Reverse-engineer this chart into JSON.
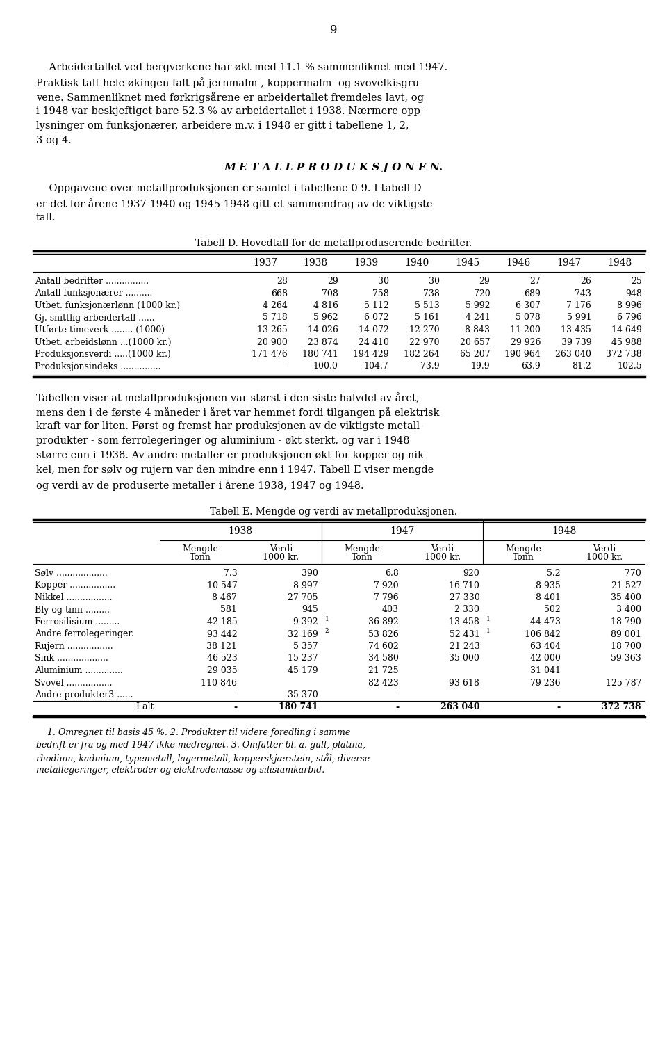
{
  "page_number": "9",
  "intro_paragraphs": [
    [
      "    Arbeidertallet ved bergverkene har økt med 11.1 % sammenliknet med 1947.",
      false
    ],
    [
      "Praktisk talt hele økingen falt på jernmalm-, koppermalm- og svovelkisgru-",
      false
    ],
    [
      "vene. Sammenliknet med førkrigsårene er arbeidertallet fremdeles lavt, og",
      false
    ],
    [
      "i 1948 var beskjeftiget bare 52.3 % av arbeidertallet i 1938. Nærmere opp-",
      false
    ],
    [
      "lysninger om funksjonærer, arbeidere m.v. i 1948 er gitt i tabellene 1, 2,",
      false
    ],
    [
      "3 og 4.",
      false
    ]
  ],
  "section_title": "M E T A L L P R O D U K S J O N E N.",
  "section_paragraphs": [
    [
      "    Oppgavene over metallproduksjonen er samlet i tabellene 0-9. I tabell D",
      false
    ],
    [
      "er det for årene 1937-1940 og 1945-1948 gitt et sammendrag av de viktigste",
      false
    ],
    [
      "tall.",
      false
    ]
  ],
  "table_d_title": "Tabell D. Hovedtall for de metallproduserende bedrifter.",
  "table_d_years": [
    "1937",
    "1938",
    "1939",
    "1940",
    "1945",
    "1946",
    "1947",
    "1948"
  ],
  "table_d_rows": [
    {
      "label": "Antall bedrifter ................",
      "values": [
        "28",
        "29",
        "30",
        "30",
        "29",
        "27",
        "26",
        "25"
      ]
    },
    {
      "label": "Antall funksjonærer ..........",
      "values": [
        "668",
        "708",
        "758",
        "738",
        "720",
        "689",
        "743",
        "948"
      ]
    },
    {
      "label": "Utbet. funksjonærlønn (1000 kr.)",
      "values": [
        "4 264",
        "4 816",
        "5 112",
        "5 513",
        "5 992",
        "6 307",
        "7 176",
        "8 996"
      ]
    },
    {
      "label": "Gj. snittlig arbeidertall ......",
      "values": [
        "5 718",
        "5 962",
        "6 072",
        "5 161",
        "4 241",
        "5 078",
        "5 991",
        "6 796"
      ]
    },
    {
      "label": "Utførte timeverk ........ (1000)",
      "values": [
        "13 265",
        "14 026",
        "14 072",
        "12 270",
        "8 843",
        "11 200",
        "13 435",
        "14 649"
      ]
    },
    {
      "label": "Utbet. arbeidslønn ...(1000 kr.)",
      "values": [
        "20 900",
        "23 874",
        "24 410",
        "22 970",
        "20 657",
        "29 926",
        "39 739",
        "45 988"
      ]
    },
    {
      "label": "Produksjonsverdi .....(1000 kr.)",
      "values": [
        "171 476",
        "180 741",
        "194 429",
        "182 264",
        "65 207",
        "190 964",
        "263 040",
        "372 738"
      ]
    },
    {
      "label": "Produksjonsindeks ...............",
      "values": [
        "-",
        "100.0",
        "104.7",
        "73.9",
        "19.9",
        "63.9",
        "81.2",
        "102.5"
      ]
    }
  ],
  "middle_paragraphs": [
    [
      "Tabellen viser at metallproduksjonen var størst i den siste halvdel av året,",
      false
    ],
    [
      "mens den i de første 4 måneder i året var hemmet fordi tilgangen på elektrisk",
      false
    ],
    [
      "kraft var for liten. Først og fremst har produksjonen av de viktigste metall-",
      false
    ],
    [
      "produkter - som ferrolegeringer og aluminium - økt sterkt, og var i 1948",
      false
    ],
    [
      "større enn i 1938. Av andre metaller er produksjonen økt for kopper og nik-",
      false
    ],
    [
      "kel, men for sølv og rujern var den mindre enn i 1947. Tabell E viser mengde",
      false
    ],
    [
      "og verdi av de produserte metaller i årene 1938, 1947 og 1948.",
      false
    ]
  ],
  "table_e_title": "Tabell E. Mengde og verdi av metallproduksjonen.",
  "table_e_year_headers": [
    "1938",
    "1947",
    "1948"
  ],
  "table_e_rows": [
    {
      "label": "Sølv ...................",
      "values": [
        "7.3",
        "390",
        "6.8",
        "920",
        "5.2",
        "770"
      ],
      "sups": [
        "",
        "",
        "",
        "",
        "",
        ""
      ]
    },
    {
      "label": "Kopper .................",
      "values": [
        "10 547",
        "8 997",
        "7 920",
        "16 710",
        "8 935",
        "21 527"
      ],
      "sups": [
        "",
        "",
        "",
        "",
        "",
        ""
      ]
    },
    {
      "label": "Nikkel .................",
      "values": [
        "8 467",
        "27 705",
        "7 796",
        "27 330",
        "8 401",
        "35 400"
      ],
      "sups": [
        "",
        "",
        "",
        "",
        "",
        ""
      ]
    },
    {
      "label": "Bly og tinn .........",
      "values": [
        "581",
        "945",
        "403",
        "2 330",
        "502",
        "3 400"
      ],
      "sups": [
        "",
        "",
        "",
        "",
        "",
        ""
      ]
    },
    {
      "label": "Ferrosilisium .........",
      "values": [
        "42 185",
        "9 392",
        "36 892",
        "13 458",
        "44 473",
        "18 790"
      ],
      "sups": [
        "",
        "",
        "1",
        "",
        "1",
        ""
      ]
    },
    {
      "label": "Andre ferrolegeringer.",
      "values": [
        "93 442",
        "32 169",
        "53 826",
        "52 431",
        "106 842",
        "89 001"
      ],
      "sups": [
        "",
        "",
        "2",
        "",
        "1",
        ""
      ]
    },
    {
      "label": "Rujern .................",
      "values": [
        "38 121",
        "5 357",
        "74 602",
        "21 243",
        "63 404",
        "18 700"
      ],
      "sups": [
        "",
        "",
        "",
        "",
        "",
        ""
      ]
    },
    {
      "label": "Sink ...................",
      "values": [
        "46 523",
        "15 237",
        "34 580",
        "35 000",
        "42 000",
        "59 363"
      ],
      "sups": [
        "",
        "",
        "",
        "",
        "",
        ""
      ]
    },
    {
      "label": "Aluminium ..............",
      "values": [
        "29 035",
        "45 179",
        "21 725",
        "",
        "31 041",
        ""
      ],
      "sups": [
        "",
        "",
        "",
        "",
        "",
        ""
      ]
    },
    {
      "label": "Svovel .................",
      "values": [
        "110 846",
        "",
        "82 423",
        "93 618",
        "79 236",
        "125 787"
      ],
      "sups": [
        "",
        "",
        "",
        "",
        "",
        ""
      ]
    },
    {
      "label": "Andre produkter3 ......",
      "values": [
        "-",
        "35 370",
        "-",
        "",
        "-",
        ""
      ],
      "sups": [
        "",
        "",
        "",
        "",
        "",
        ""
      ]
    },
    {
      "label": "I alt",
      "values": [
        "-",
        "180 741",
        "-",
        "263 040",
        "-",
        "372 738"
      ],
      "sups": [
        "",
        "",
        "",
        "",
        "",
        ""
      ],
      "bold": true
    }
  ],
  "footnote_lines": [
    "    1. Omregnet til basis 45 %. 2. Produkter til videre foredling i samme",
    "bedrift er fra og med 1947 ikke medregnet. 3. Omfatter bl. a. gull, platina,",
    "rhodium, kadmium, typemetall, lagermetall, kopperskjærstein, stål, diverse",
    "metallegeringer, elektroder og elektrodemasse og silisiumkarbid."
  ]
}
